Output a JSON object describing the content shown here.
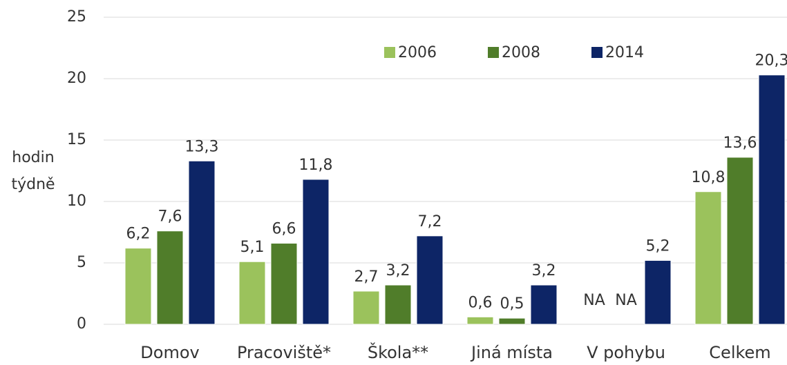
{
  "chart_data": {
    "type": "bar",
    "y_label": [
      "hodin",
      "týdně"
    ],
    "categories": [
      "Domov",
      "Pracoviště*",
      "Škola**",
      "Jiná místa",
      "V pohybu",
      "Celkem"
    ],
    "series": [
      {
        "name": "2006",
        "color": "#9bc25c",
        "values": [
          6.2,
          5.1,
          2.7,
          0.6,
          null,
          10.8
        ],
        "value_labels": [
          "6,2",
          "5,1",
          "2,7",
          "0,6",
          "NA",
          "10,8"
        ]
      },
      {
        "name": "2008",
        "color": "#507d2a",
        "values": [
          7.6,
          6.6,
          3.2,
          0.5,
          null,
          13.6
        ],
        "value_labels": [
          "7,6",
          "6,6",
          "3,2",
          "0,5",
          "NA",
          "13,6"
        ]
      },
      {
        "name": "2014",
        "color": "#0d2566",
        "values": [
          13.3,
          11.8,
          7.2,
          3.2,
          5.2,
          20.3
        ],
        "value_labels": [
          "13,3",
          "11,8",
          "7,2",
          "3,2",
          "5,2",
          "20,3"
        ]
      }
    ],
    "ylim": [
      0,
      25
    ],
    "yticks": [
      0,
      5,
      10,
      15,
      20,
      25
    ],
    "grid": true,
    "legend": "top"
  }
}
